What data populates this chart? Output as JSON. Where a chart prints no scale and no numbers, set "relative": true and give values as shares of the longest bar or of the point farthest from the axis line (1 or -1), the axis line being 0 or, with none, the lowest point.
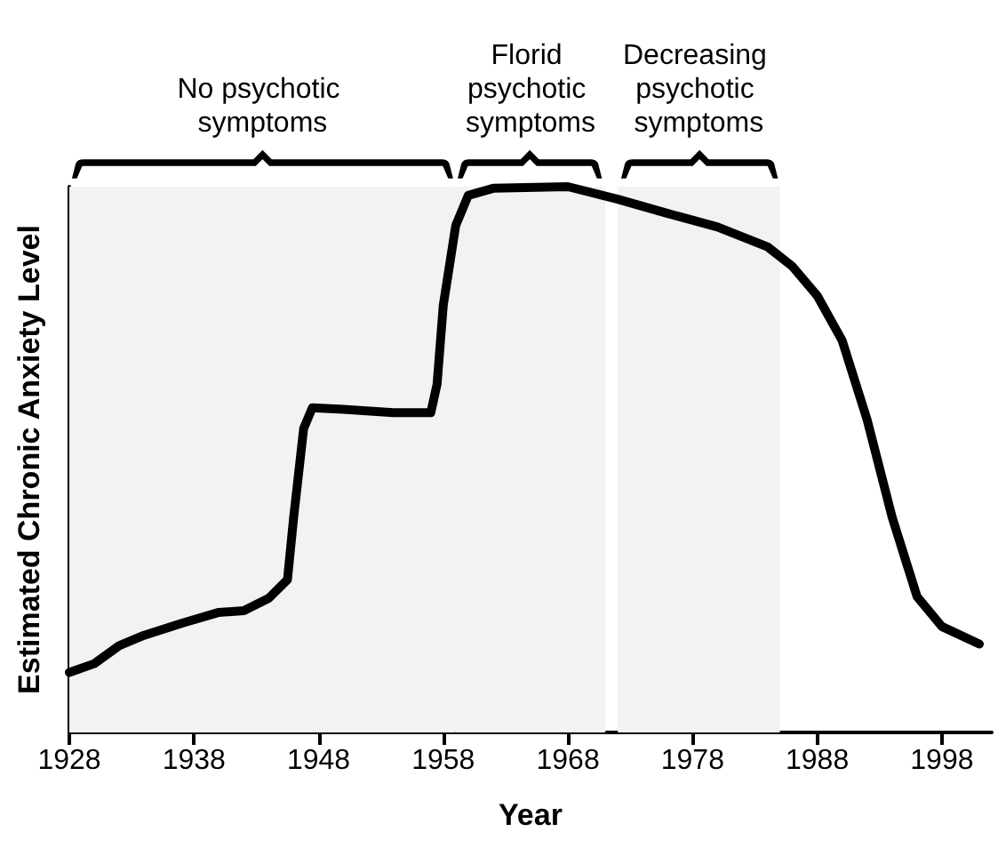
{
  "chart_data": {
    "type": "line",
    "relative": true,
    "xlabel": "Year",
    "ylabel": "Estimated Chronic Anxiety Level",
    "xlim": [
      1928,
      2002
    ],
    "xticks": [
      1928,
      1938,
      1948,
      1958,
      1968,
      1978,
      1988,
      1998
    ],
    "grid": false,
    "marker": "none",
    "line_style": "solid",
    "x": [
      1928,
      1930,
      1932,
      1934,
      1937,
      1940,
      1942,
      1944,
      1945.5,
      1946,
      1946.8,
      1947.5,
      1950,
      1954,
      1957,
      1957.5,
      1958,
      1959,
      1960,
      1962,
      1968,
      1972,
      1976,
      1980,
      1984,
      1986,
      1988,
      1990,
      1992,
      1994,
      1996,
      1998,
      2001
    ],
    "series": [
      {
        "color": "#000000",
        "values": [
          0.11,
          0.126,
          0.159,
          0.178,
          0.2,
          0.22,
          0.223,
          0.246,
          0.28,
          0.395,
          0.557,
          0.595,
          0.592,
          0.586,
          0.586,
          0.638,
          0.783,
          0.929,
          0.984,
          0.997,
          1,
          0.977,
          0.951,
          0.926,
          0.89,
          0.854,
          0.8,
          0.718,
          0.573,
          0.395,
          0.249,
          0.194,
          0.162
        ]
      }
    ],
    "bands": [
      {
        "axis": "x",
        "from": 1928,
        "to": 1959,
        "label": "No psychotic symptoms"
      },
      {
        "axis": "x",
        "from": 1959,
        "to": 1971,
        "label": "Florid psychotic symptoms"
      },
      {
        "axis": "x",
        "from": 1972,
        "to": 1985,
        "label": "Decreasing psychotic symptoms"
      }
    ]
  }
}
